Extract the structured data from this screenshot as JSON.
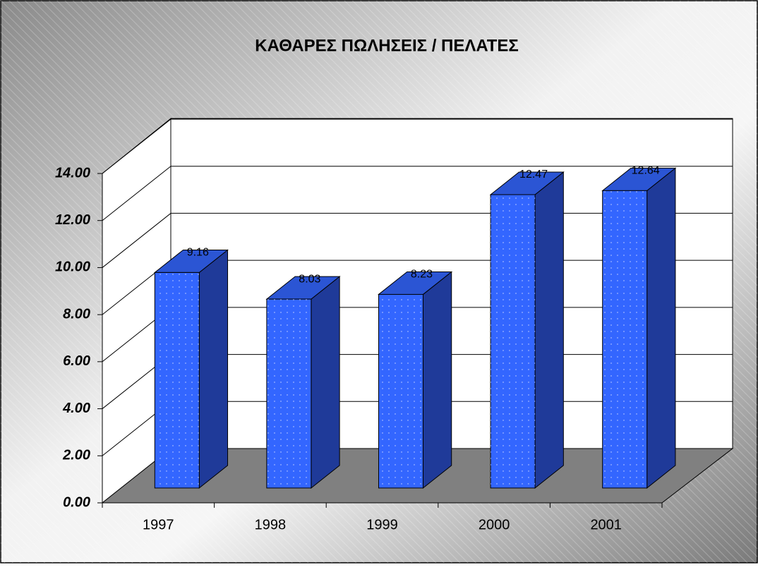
{
  "chart_data": {
    "type": "bar3d",
    "title": "ΚΑΘΑΡΕΣ ΠΩΛΗΣΕΙΣ / ΠΕΛΑΤΕΣ",
    "categories": [
      "1997",
      "1998",
      "1999",
      "2000",
      "2001"
    ],
    "values": [
      9.16,
      8.03,
      8.23,
      12.47,
      12.64
    ],
    "color": "#3366ff",
    "ylim": [
      0,
      14
    ],
    "yticks": [
      {
        "value": 0,
        "label": "0.00"
      },
      {
        "value": 2,
        "label": "2.00"
      },
      {
        "value": 4,
        "label": "4.00"
      },
      {
        "value": 6,
        "label": "6.00"
      },
      {
        "value": 8,
        "label": "8.00"
      },
      {
        "value": 10,
        "label": "10.00"
      },
      {
        "value": 12,
        "label": "12.00"
      },
      {
        "value": 14,
        "label": "14.00"
      }
    ],
    "grid": true
  }
}
